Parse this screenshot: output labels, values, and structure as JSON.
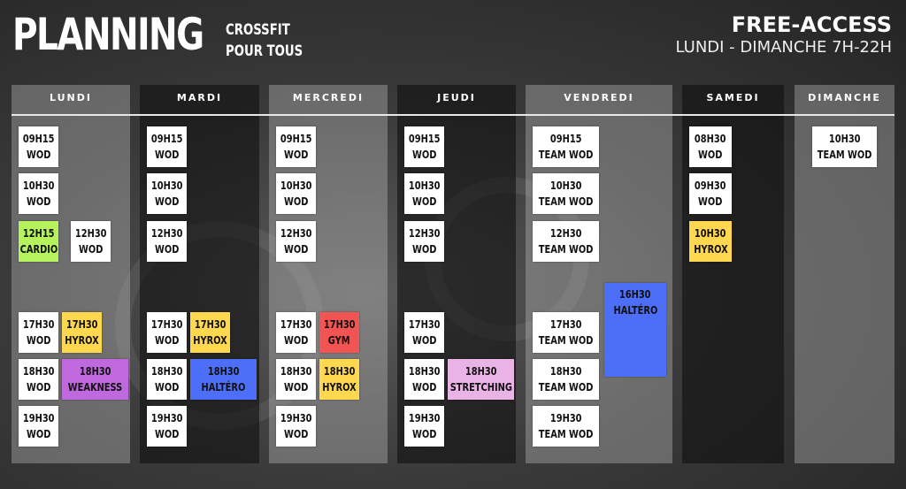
{
  "header": {
    "title": "PLANNING",
    "subtitle_line1": "CROSSFIT",
    "subtitle_line2": "POUR TOUS",
    "access_title": "FREE-ACCESS",
    "access_hours": "LUNDI - DIMANCHE 7H-22H"
  },
  "colors": {
    "white": "#ffffff",
    "green": "#b5f25c",
    "yellow": "#ffd84f",
    "red": "#f25353",
    "purple": "#c068de",
    "blue": "#4d6ef6",
    "pink": "#eab3e6"
  },
  "days": [
    {
      "name": "LUNDI",
      "shade": "light",
      "slots": [
        [
          {
            "time": "09H15",
            "label": "WOD",
            "color": "white"
          }
        ],
        [
          {
            "time": "10H30",
            "label": "WOD",
            "color": "white"
          }
        ],
        [
          {
            "time": "12H15",
            "label": "CARDIO",
            "color": "green"
          },
          {
            "time": "12H30",
            "label": "WOD",
            "color": "white"
          }
        ],
        [
          {
            "time": "17H30",
            "label": "WOD",
            "color": "white"
          },
          {
            "time": "17H30",
            "label": "HYROX",
            "color": "yellow"
          }
        ],
        [
          {
            "time": "18H30",
            "label": "WOD",
            "color": "white"
          },
          {
            "time": "18H30",
            "label": "WEAKNESS",
            "color": "purple"
          }
        ],
        [
          {
            "time": "19H30",
            "label": "WOD",
            "color": "white"
          }
        ]
      ]
    },
    {
      "name": "MARDI",
      "shade": "dark",
      "slots": [
        [
          {
            "time": "09H15",
            "label": "WOD",
            "color": "white"
          }
        ],
        [
          {
            "time": "10H30",
            "label": "WOD",
            "color": "white"
          }
        ],
        [
          {
            "time": "12H30",
            "label": "WOD",
            "color": "white"
          }
        ],
        [
          {
            "time": "17H30",
            "label": "WOD",
            "color": "white"
          },
          {
            "time": "17H30",
            "label": "HYROX",
            "color": "yellow"
          }
        ],
        [
          {
            "time": "18H30",
            "label": "WOD",
            "color": "white"
          },
          {
            "time": "18H30",
            "label": "HALTÉRO",
            "color": "blue"
          }
        ],
        [
          {
            "time": "19H30",
            "label": "WOD",
            "color": "white"
          }
        ]
      ]
    },
    {
      "name": "MERCREDI",
      "shade": "light",
      "slots": [
        [
          {
            "time": "09H15",
            "label": "WOD",
            "color": "white"
          }
        ],
        [
          {
            "time": "10H30",
            "label": "WOD",
            "color": "white"
          }
        ],
        [
          {
            "time": "12H30",
            "label": "WOD",
            "color": "white"
          }
        ],
        [
          {
            "time": "17H30",
            "label": "WOD",
            "color": "white"
          },
          {
            "time": "17H30",
            "label": "GYM",
            "color": "red"
          }
        ],
        [
          {
            "time": "18H30",
            "label": "WOD",
            "color": "white"
          },
          {
            "time": "18H30",
            "label": "HYROX",
            "color": "yellow"
          }
        ],
        [
          {
            "time": "19H30",
            "label": "WOD",
            "color": "white"
          }
        ]
      ]
    },
    {
      "name": "JEUDI",
      "shade": "dark",
      "slots": [
        [
          {
            "time": "09H15",
            "label": "WOD",
            "color": "white"
          }
        ],
        [
          {
            "time": "10H30",
            "label": "WOD",
            "color": "white"
          }
        ],
        [
          {
            "time": "12H30",
            "label": "WOD",
            "color": "white"
          }
        ],
        [
          {
            "time": "17H30",
            "label": "WOD",
            "color": "white"
          }
        ],
        [
          {
            "time": "18H30",
            "label": "WOD",
            "color": "white"
          },
          {
            "time": "18H30",
            "label": "STRETCHING",
            "color": "pink"
          }
        ],
        [
          {
            "time": "19H30",
            "label": "WOD",
            "color": "white"
          }
        ]
      ]
    },
    {
      "name": "VENDREDI",
      "shade": "light",
      "slots": [
        [
          {
            "time": "09H15",
            "label": "TEAM WOD",
            "color": "white"
          }
        ],
        [
          {
            "time": "10H30",
            "label": "TEAM WOD",
            "color": "white"
          }
        ],
        [
          {
            "time": "12H30",
            "label": "TEAM WOD",
            "color": "white"
          }
        ],
        [
          {
            "time": "17H30",
            "label": "TEAM WOD",
            "color": "white"
          },
          {
            "time": "16H30",
            "label": "HALTÉRO",
            "color": "blue"
          }
        ],
        [
          {
            "time": "18H30",
            "label": "TEAM WOD",
            "color": "white"
          }
        ],
        [
          {
            "time": "19H30",
            "label": "TEAM WOD",
            "color": "white"
          }
        ]
      ]
    },
    {
      "name": "SAMEDI",
      "shade": "dark",
      "slots": [
        [
          {
            "time": "08H30",
            "label": "WOD",
            "color": "white"
          }
        ],
        [
          {
            "time": "09H30",
            "label": "WOD",
            "color": "white"
          }
        ],
        [
          {
            "time": "10H30",
            "label": "HYROX",
            "color": "yellow"
          }
        ],
        [],
        [],
        []
      ]
    },
    {
      "name": "DIMANCHE",
      "shade": "light",
      "slots": [
        [
          {
            "time": "10H30",
            "label": "TEAM WOD",
            "color": "white"
          }
        ],
        [],
        [],
        [],
        [],
        []
      ]
    }
  ]
}
